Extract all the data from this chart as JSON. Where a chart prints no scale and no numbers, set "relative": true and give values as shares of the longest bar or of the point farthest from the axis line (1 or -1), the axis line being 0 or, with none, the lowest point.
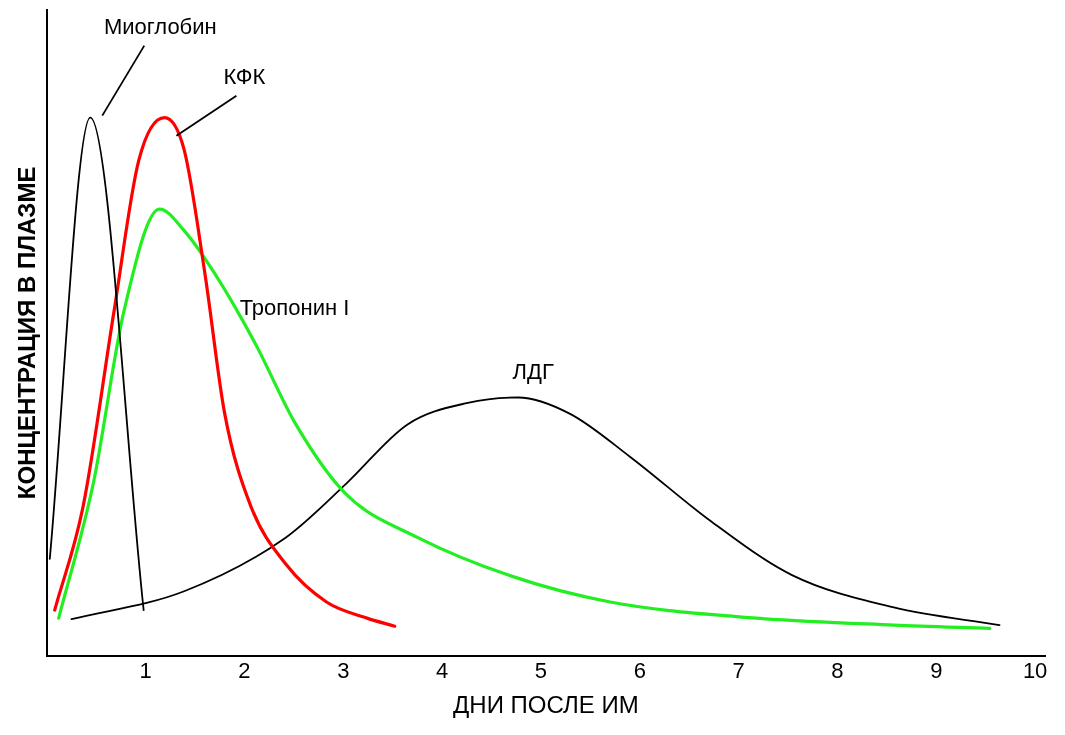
{
  "chart_data": {
    "type": "line",
    "relative": true,
    "xlabel": "ДНИ ПОСЛЕ ИМ",
    "ylabel": "КОНЦЕНТРАЦИЯ В ПЛАЗМЕ",
    "xlim": [
      0,
      10.1
    ],
    "xticks": [
      1,
      2,
      3,
      4,
      5,
      6,
      7,
      8,
      9,
      10
    ],
    "grid": false,
    "legend": false,
    "marker": "none",
    "line_style": "solid",
    "series": [
      {
        "name": "Миоглобин",
        "color": "#000000",
        "x": [
          0.03,
          0.44,
          0.98
        ],
        "values": [
          0.18,
          1.0,
          0.085
        ]
      },
      {
        "name": "КФК",
        "color": "#ff0000",
        "x": [
          0.08,
          0.37,
          0.68,
          0.93,
          1.19,
          1.39,
          1.6,
          1.8,
          2.06,
          2.42,
          2.83,
          3.24,
          3.52
        ],
        "values": [
          0.085,
          0.28,
          0.64,
          0.92,
          1.0,
          0.94,
          0.71,
          0.45,
          0.28,
          0.17,
          0.1,
          0.07,
          0.055
        ]
      },
      {
        "name": "Тропонин I",
        "color": "#22ee22",
        "x": [
          0.12,
          0.47,
          0.78,
          1.14,
          1.39,
          1.7,
          2.11,
          2.52,
          3.03,
          3.75,
          4.67,
          5.7,
          7.03,
          8.57,
          9.54
        ],
        "values": [
          0.07,
          0.32,
          0.64,
          0.83,
          0.79,
          0.71,
          0.58,
          0.43,
          0.3,
          0.22,
          0.15,
          0.1,
          0.072,
          0.057,
          0.051
        ]
      },
      {
        "name": "ЛДГ",
        "color": "#000000",
        "x": [
          0.25,
          1.39,
          2.42,
          3.03,
          3.65,
          4.26,
          4.77,
          5.29,
          5.9,
          6.72,
          7.54,
          8.57,
          9.64
        ],
        "values": [
          0.068,
          0.12,
          0.22,
          0.32,
          0.43,
          0.47,
          0.48,
          0.45,
          0.37,
          0.25,
          0.15,
          0.09,
          0.057
        ]
      }
    ]
  }
}
